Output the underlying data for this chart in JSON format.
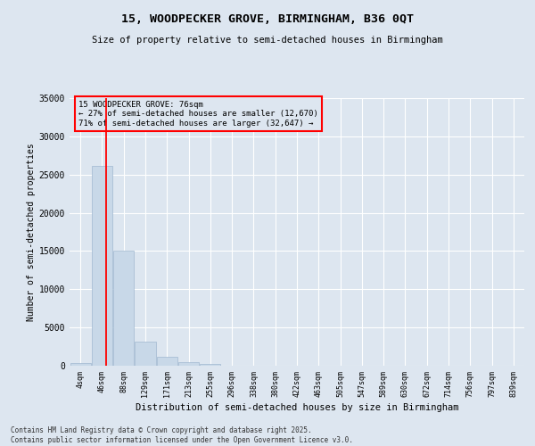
{
  "title": "15, WOODPECKER GROVE, BIRMINGHAM, B36 0QT",
  "subtitle": "Size of property relative to semi-detached houses in Birmingham",
  "xlabel": "Distribution of semi-detached houses by size in Birmingham",
  "ylabel": "Number of semi-detached properties",
  "bar_categories": [
    "4sqm",
    "46sqm",
    "88sqm",
    "129sqm",
    "171sqm",
    "213sqm",
    "255sqm",
    "296sqm",
    "338sqm",
    "380sqm",
    "422sqm",
    "463sqm",
    "505sqm",
    "547sqm",
    "589sqm",
    "630sqm",
    "672sqm",
    "714sqm",
    "756sqm",
    "797sqm",
    "839sqm"
  ],
  "bar_values": [
    300,
    26100,
    15100,
    3200,
    1200,
    450,
    200,
    0,
    0,
    0,
    0,
    0,
    0,
    0,
    0,
    0,
    0,
    0,
    0,
    0,
    0
  ],
  "bar_color": "#c8d8e8",
  "bar_edgecolor": "#a0b8d0",
  "property_sqm": 76,
  "annotation_text": "15 WOODPECKER GROVE: 76sqm\n← 27% of semi-detached houses are smaller (12,670)\n71% of semi-detached houses are larger (32,647) →",
  "ylim": [
    0,
    35000
  ],
  "yticks": [
    0,
    5000,
    10000,
    15000,
    20000,
    25000,
    30000,
    35000
  ],
  "background_color": "#dde6f0",
  "footer_line1": "Contains HM Land Registry data © Crown copyright and database right 2025.",
  "footer_line2": "Contains public sector information licensed under the Open Government Licence v3.0."
}
